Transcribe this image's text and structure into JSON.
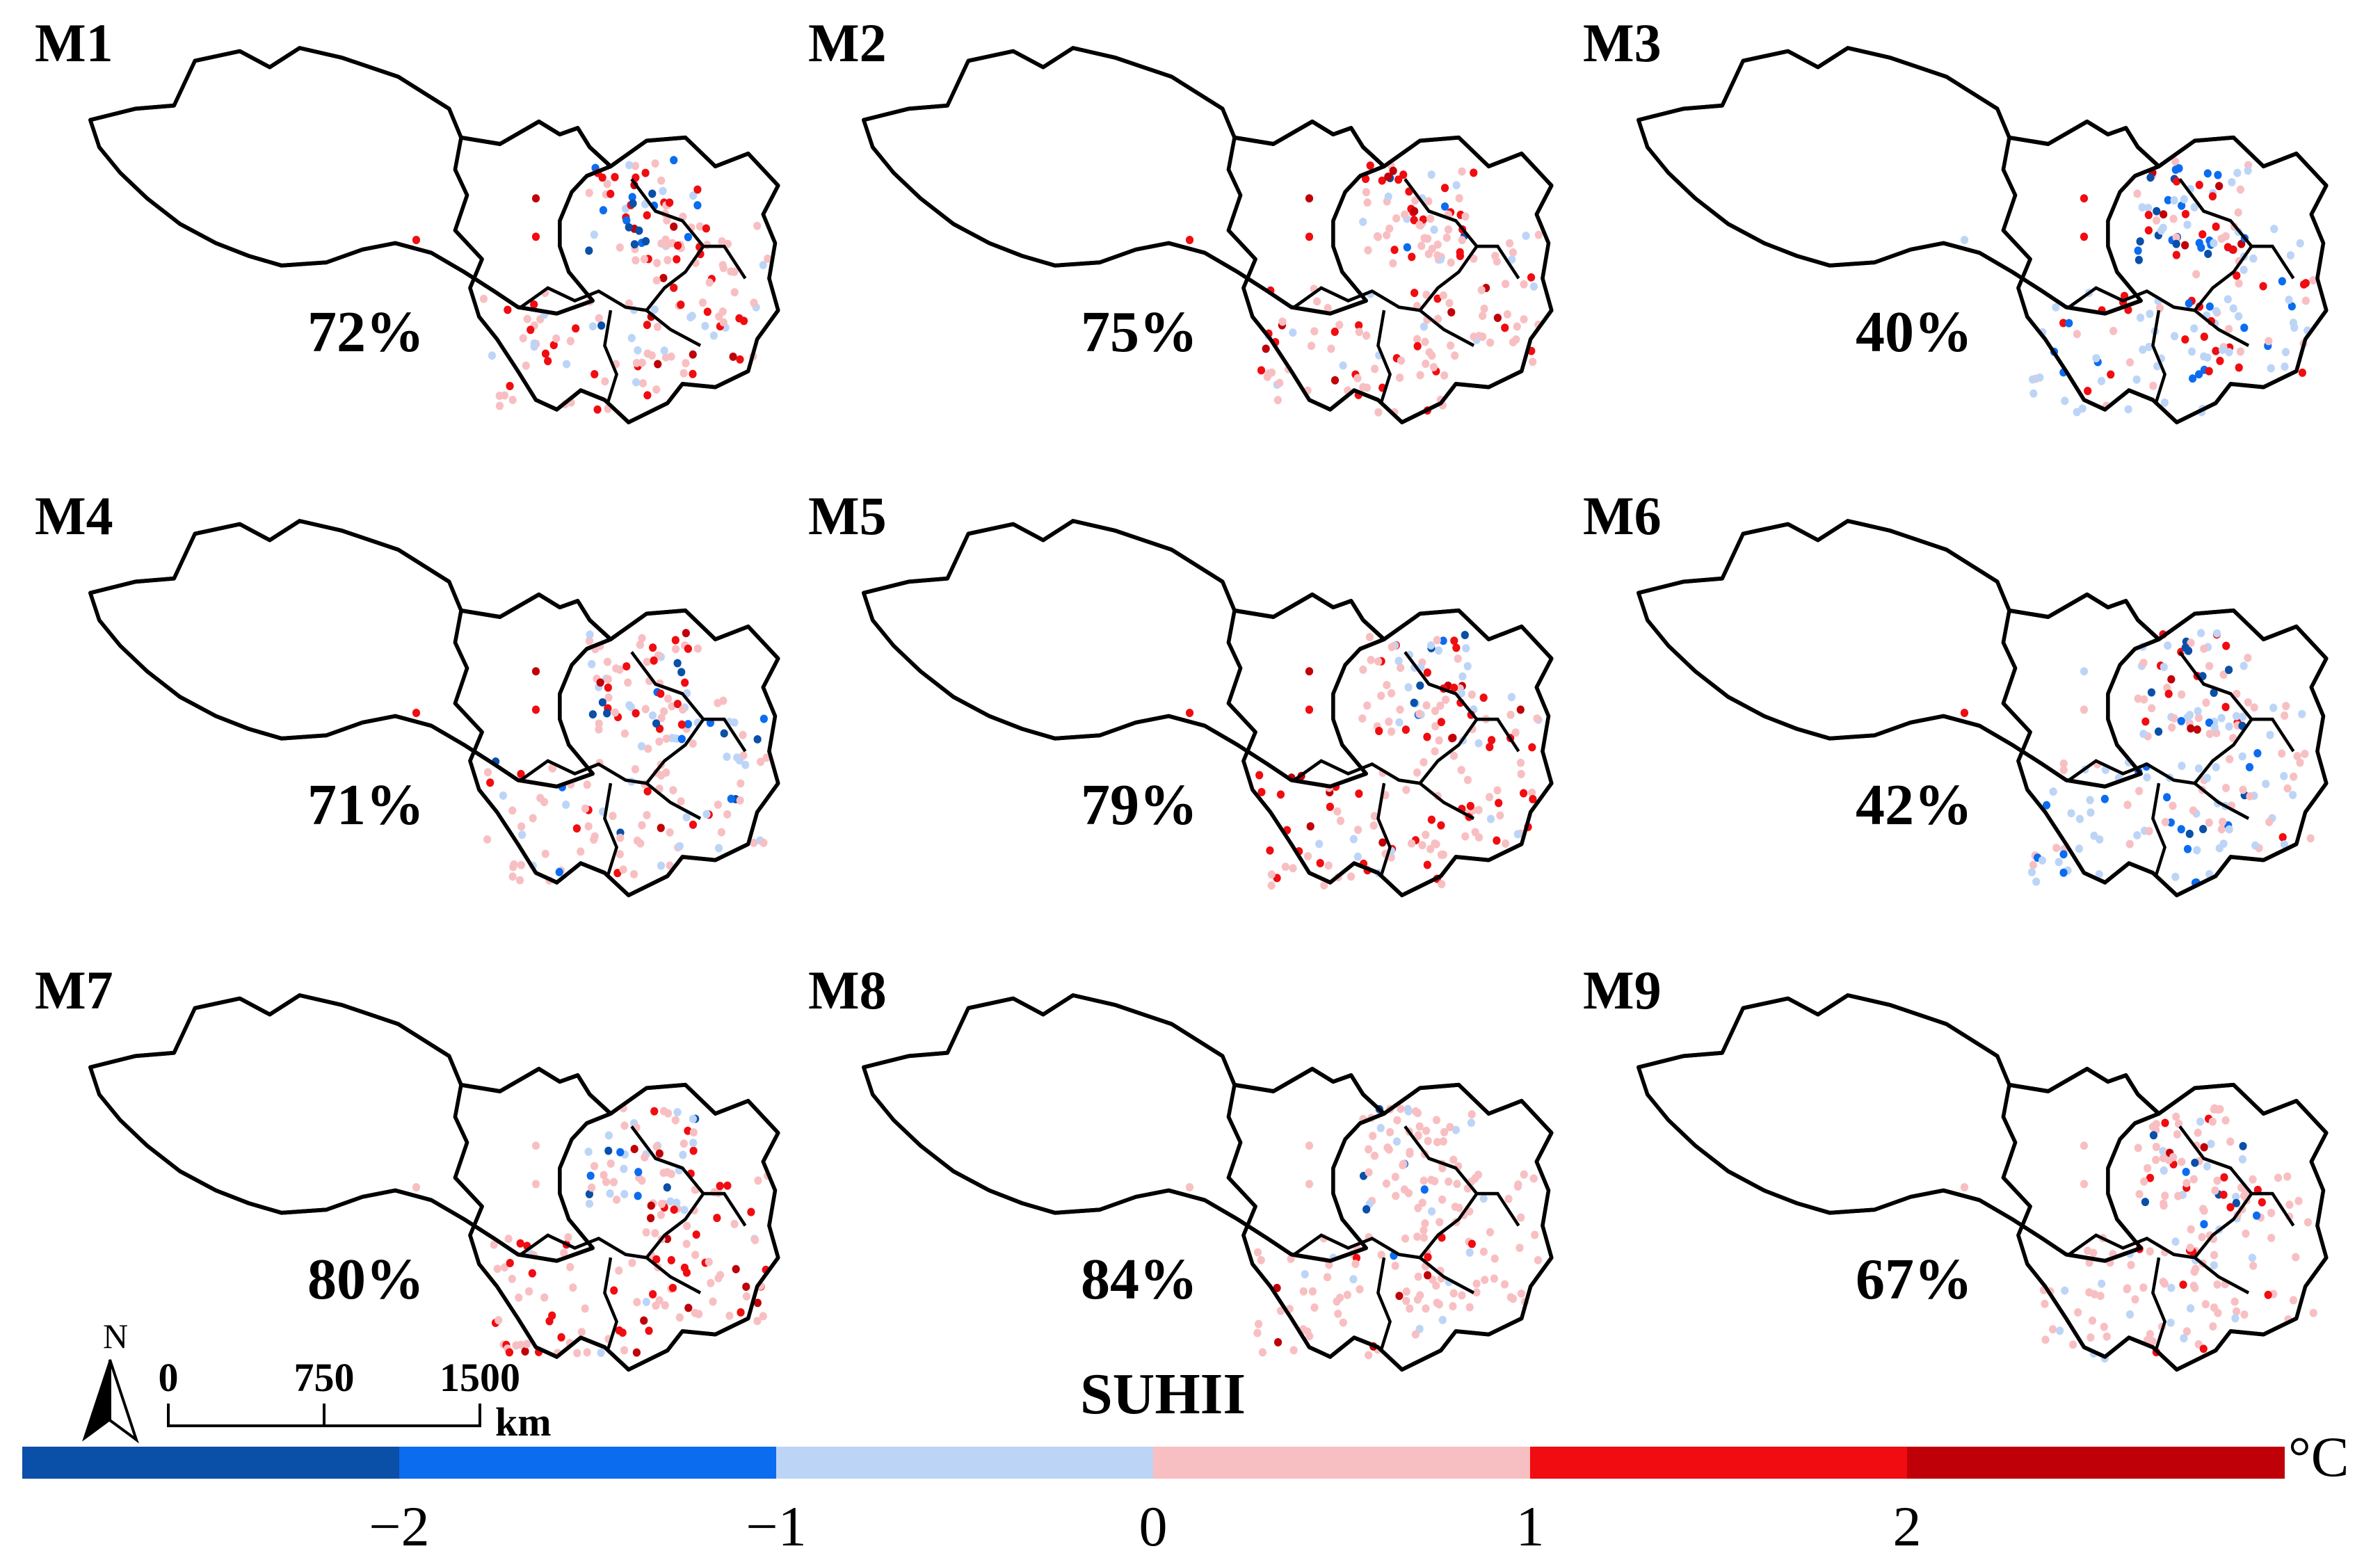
{
  "panels": [
    {
      "label": "M1",
      "percent": "72%"
    },
    {
      "label": "M4",
      "percent": "71%"
    },
    {
      "label": "M7",
      "percent": "80%"
    },
    {
      "label": "M2",
      "percent": "75%"
    },
    {
      "label": "M5",
      "percent": "79%"
    },
    {
      "label": "M8",
      "percent": "84%"
    },
    {
      "label": "M3",
      "percent": "40%"
    },
    {
      "label": "M6",
      "percent": "42%"
    },
    {
      "label": "M9",
      "percent": "67%"
    }
  ],
  "north_arrow": {
    "label": "N"
  },
  "scale_bar": {
    "ticks": [
      "0",
      "750",
      "1500"
    ],
    "unit": "km"
  },
  "legend": {
    "title": "SUHII",
    "unit": "°C",
    "tick_labels": [
      "−2",
      "−1",
      "0",
      "1",
      "2"
    ],
    "classes": [
      {
        "range": "< −2",
        "color": "#0a4fa8"
      },
      {
        "range": "−2 to −1",
        "color": "#0b6cf0"
      },
      {
        "range": "−1 to 0",
        "color": "#bcd5f7"
      },
      {
        "range": "0 to 1",
        "color": "#f8bfc2"
      },
      {
        "range": "1 to 2",
        "color": "#f00c10"
      },
      {
        "range": "> 2",
        "color": "#bf0008"
      }
    ]
  }
}
